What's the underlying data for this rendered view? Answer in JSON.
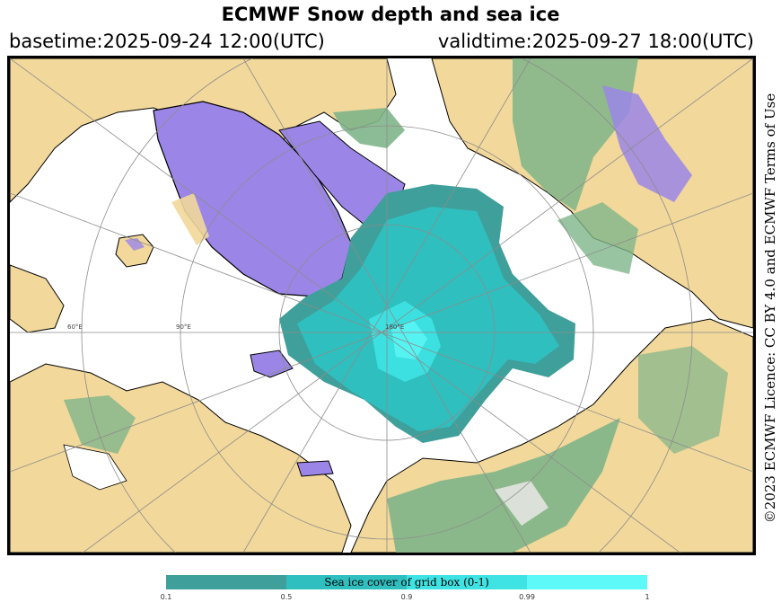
{
  "header": {
    "title": "ECMWF Snow depth and sea ice",
    "basetime": "basetime:2025-09-24 12:00(UTC)",
    "validtime": "validtime:2025-09-27 18:00(UTC)"
  },
  "licence": "©2023 ECMWF Licence: CC BY 4.0 and ECMWF Terms of Use",
  "map": {
    "projection": "north-polar-stereographic",
    "grid_labels": [
      "60°E",
      "90°E",
      "180°E"
    ],
    "colors": {
      "ocean": "#ffffff",
      "land": "#f2d89a",
      "vegetation": "#7fb58a",
      "snow": "#9b86e8",
      "ice_low": "#3f9f9a",
      "ice_mid": "#2fbfbf",
      "ice_high": "#3fe3e3",
      "ice_full": "#5df8f8",
      "grid": "#8c8c8c",
      "coast": "#000000"
    }
  },
  "colorbar": {
    "label": "Sea ice cover of grid box (0-1)",
    "ticks": [
      "0.1",
      "0.5",
      "0.9",
      "0.99",
      "1"
    ],
    "segments": [
      {
        "from": "0.1",
        "to": "0.5",
        "color": "#3f9f9a"
      },
      {
        "from": "0.5",
        "to": "0.9",
        "color": "#2fbfbf"
      },
      {
        "from": "0.9",
        "to": "0.99",
        "color": "#3fe3e3"
      },
      {
        "from": "0.99",
        "to": "1",
        "color": "#5df8f8"
      }
    ]
  }
}
